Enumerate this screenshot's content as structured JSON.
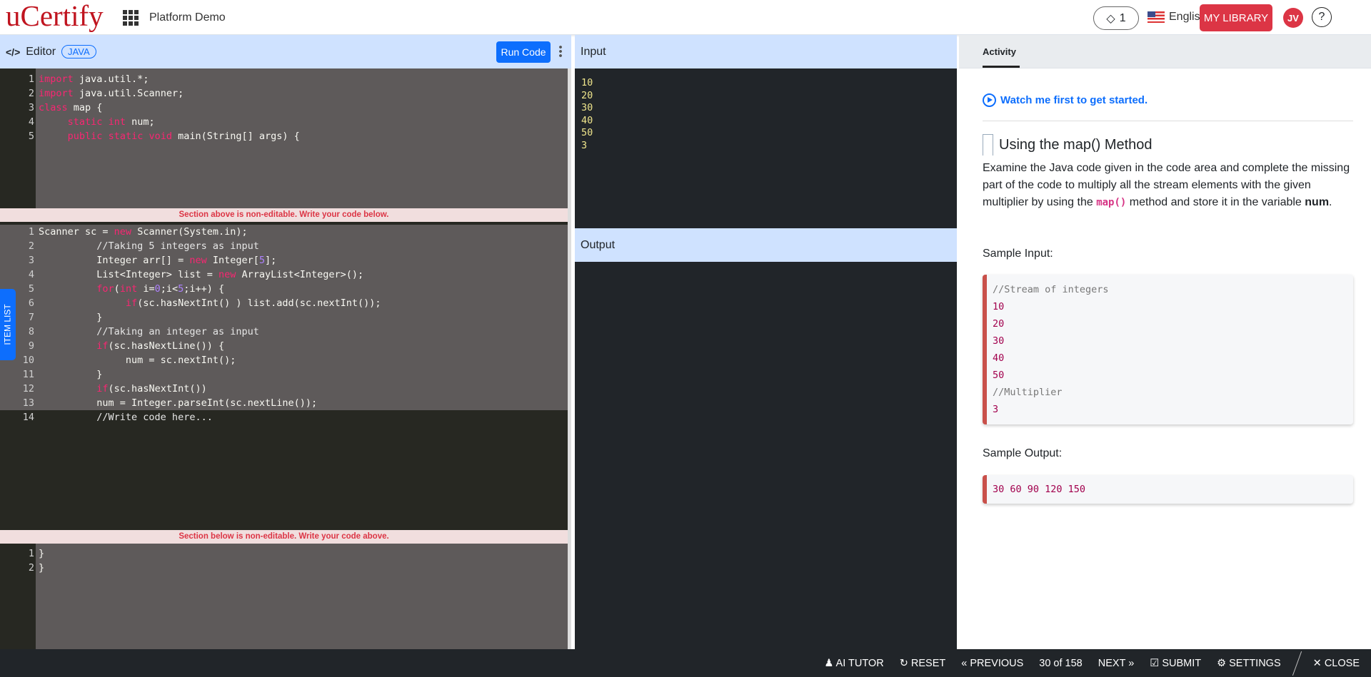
{
  "header": {
    "logo": "uCertify",
    "app_title": "Platform Demo",
    "gems": "1",
    "language": "English",
    "my_library": "MY LIBRARY",
    "avatar": "JV",
    "help": "?"
  },
  "editor": {
    "title": "Editor",
    "language_badge": "JAVA",
    "run_label": "Run Code",
    "item_list": "ITEM LIST",
    "banner_top": "Section above is non-editable. Write your code below.",
    "banner_bottom": "Section below is non-editable. Write your code above.",
    "top_lines": [
      [
        [
          "import",
          "kw"
        ],
        [
          " java.util.*;",
          ""
        ]
      ],
      [
        [
          "import",
          "kw"
        ],
        [
          " java.util.Scanner;",
          ""
        ]
      ],
      [
        [
          "class",
          "kw"
        ],
        [
          " map {",
          ""
        ]
      ],
      [
        [
          "     ",
          ""
        ],
        [
          "static",
          "kw"
        ],
        [
          " ",
          ""
        ],
        [
          "int",
          "kw"
        ],
        [
          " num;",
          ""
        ]
      ],
      [
        [
          "     ",
          ""
        ],
        [
          "public",
          "kw"
        ],
        [
          " ",
          ""
        ],
        [
          "static",
          "kw"
        ],
        [
          " ",
          ""
        ],
        [
          "void",
          "kw"
        ],
        [
          " main(String[] args) {",
          ""
        ]
      ]
    ],
    "mid_lines": [
      [
        [
          "Scanner sc = ",
          ""
        ],
        [
          "new",
          "kw"
        ],
        [
          " Scanner(System.in);",
          ""
        ]
      ],
      [
        [
          "          //Taking 5 integers as input",
          "cm"
        ]
      ],
      [
        [
          "          Integer arr[] = ",
          ""
        ],
        [
          "new",
          "kw"
        ],
        [
          " Integer[",
          ""
        ],
        [
          "5",
          "num"
        ],
        [
          "];",
          ""
        ]
      ],
      [
        [
          "          List<Integer> list = ",
          ""
        ],
        [
          "new",
          "kw"
        ],
        [
          " ArrayList<Integer>();",
          ""
        ]
      ],
      [
        [
          "          ",
          ""
        ],
        [
          "for",
          "kw"
        ],
        [
          "(",
          ""
        ],
        [
          "int",
          "kw"
        ],
        [
          " i=",
          ""
        ],
        [
          "0",
          "num"
        ],
        [
          ";i<",
          ""
        ],
        [
          "5",
          "num"
        ],
        [
          ";i++) {",
          ""
        ]
      ],
      [
        [
          "               ",
          ""
        ],
        [
          "if",
          "kw"
        ],
        [
          "(sc.hasNextInt() ) list.add(sc.nextInt());",
          ""
        ]
      ],
      [
        [
          "          }",
          ""
        ]
      ],
      [
        [
          "          //Taking an integer as input",
          "cm"
        ]
      ],
      [
        [
          "          ",
          ""
        ],
        [
          "if",
          "kw"
        ],
        [
          "(sc.hasNextLine()) {",
          ""
        ]
      ],
      [
        [
          "               num = sc.nextInt();",
          ""
        ]
      ],
      [
        [
          "          }",
          ""
        ]
      ],
      [
        [
          "          ",
          ""
        ],
        [
          "if",
          "kw"
        ],
        [
          "(sc.hasNextInt())",
          ""
        ]
      ],
      [
        [
          "          num = Integer.parseInt(sc.nextLine());",
          ""
        ]
      ],
      [
        [
          "          //Write code here...",
          "cm"
        ]
      ]
    ],
    "bottom_lines": [
      [
        [
          "}",
          ""
        ]
      ],
      [
        [
          "}",
          ""
        ]
      ]
    ]
  },
  "input": {
    "title": "Input",
    "lines": [
      "10",
      "20",
      "30",
      "40",
      "50",
      "3"
    ]
  },
  "output": {
    "title": "Output"
  },
  "activity": {
    "tab": "Activity",
    "watch": "Watch me first to get started.",
    "title": "Using the map() Method",
    "desc_1": "Examine the Java code given in the code area and complete the missing part of the code to multiply all the stream elements with the given multiplier by using the ",
    "desc_code": "map()",
    "desc_2": " method and store it in the variable ",
    "desc_bold": "num",
    "desc_3": ".",
    "sample_input_label": "Sample Input:",
    "sample_input": [
      "//Stream of integers",
      "10",
      "20",
      "30",
      "40",
      "50",
      "//Multiplier",
      "3"
    ],
    "sample_output_label": "Sample Output:",
    "sample_output": "30 60 90 120 150"
  },
  "footer": {
    "ai_tutor": "AI TUTOR",
    "reset": "RESET",
    "previous": "PREVIOUS",
    "position": "30 of 158",
    "next": "NEXT",
    "submit": "SUBMIT",
    "settings": "SETTINGS",
    "close": "CLOSE"
  }
}
